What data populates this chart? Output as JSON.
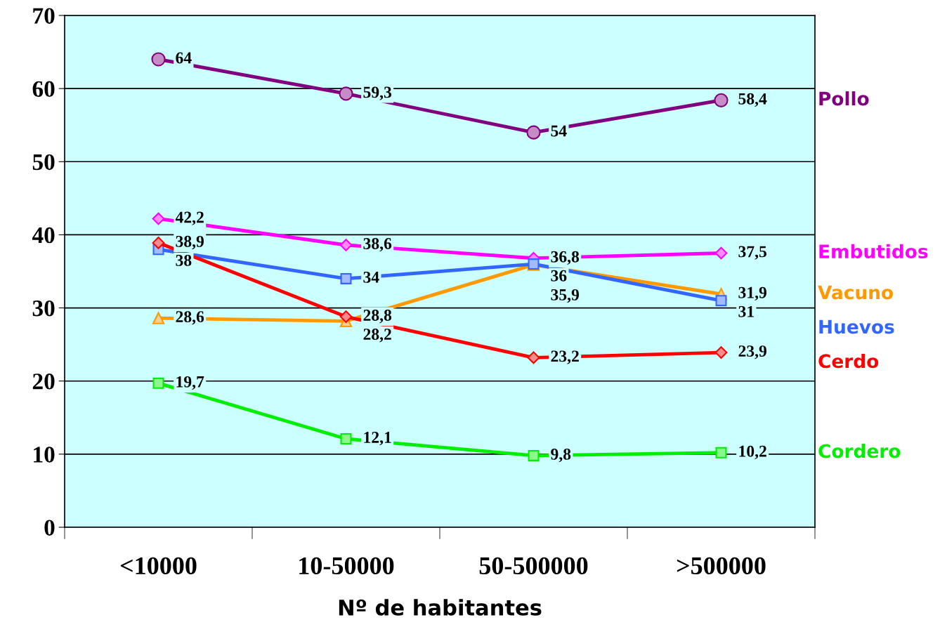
{
  "chart_data": {
    "type": "line",
    "xlabel": "Nº de habitantes",
    "categories": [
      "<10000",
      "10-50000",
      "50-500000",
      ">500000"
    ],
    "ylim": [
      0,
      70
    ],
    "yticks": [
      0,
      10,
      20,
      30,
      40,
      50,
      60,
      70
    ],
    "grid": "y",
    "legend": false,
    "series": [
      {
        "name": "Pollo",
        "color": "#800080",
        "marker": "circle",
        "values": [
          64,
          59.3,
          54,
          58.4
        ],
        "value_labels": [
          "64",
          "59,3",
          "54",
          "58,4"
        ]
      },
      {
        "name": "Embutidos",
        "color": "#ff00ff",
        "marker": "diamond",
        "values": [
          42.2,
          38.6,
          36.8,
          37.5
        ],
        "value_labels": [
          "42,2",
          "38,6",
          "36,8",
          "37,5"
        ]
      },
      {
        "name": "Vacuno",
        "color": "#ff9900",
        "marker": "triangle",
        "values": [
          28.6,
          28.2,
          35.9,
          31.9
        ],
        "value_labels": [
          "28,6",
          "28,2",
          "35,9",
          "31,9"
        ]
      },
      {
        "name": "Huevos",
        "color": "#3366ff",
        "marker": "square",
        "values": [
          38,
          34,
          36,
          31
        ],
        "value_labels": [
          "38",
          "34",
          "36",
          "31"
        ]
      },
      {
        "name": "Cerdo",
        "color": "#ff0000",
        "marker": "diamond",
        "values": [
          38.9,
          28.8,
          23.2,
          23.9
        ],
        "value_labels": [
          "38,9",
          "28,8",
          "23,2",
          "23,9"
        ]
      },
      {
        "name": "Cordero",
        "color": "#00ee00",
        "marker": "square",
        "values": [
          19.7,
          12.1,
          9.8,
          10.2
        ],
        "value_labels": [
          "19,7",
          "12,1",
          "9,8",
          "10,2"
        ]
      }
    ]
  }
}
